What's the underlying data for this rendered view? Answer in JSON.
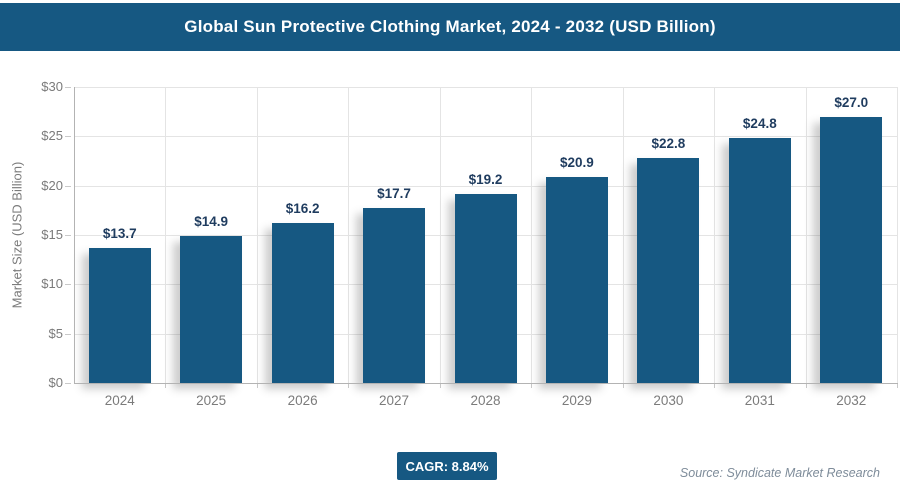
{
  "header": {
    "title": "Global Sun Protective Clothing Market, 2024 - 2032 (USD Billion)"
  },
  "chart_data": {
    "type": "bar",
    "title": "Global Sun Protective Clothing Market, 2024 - 2032 (USD Billion)",
    "categories": [
      "2024",
      "2025",
      "2026",
      "2027",
      "2028",
      "2029",
      "2030",
      "2031",
      "2032"
    ],
    "values": [
      13.7,
      14.9,
      16.2,
      17.7,
      19.2,
      20.9,
      22.8,
      24.8,
      27.0
    ],
    "value_labels": [
      "$13.7",
      "$14.9",
      "$16.2",
      "$17.7",
      "$19.2",
      "$20.9",
      "$22.8",
      "$24.8",
      "$27.0"
    ],
    "xlabel": "",
    "ylabel": "Market Size (USD Billion)",
    "ylim": [
      0,
      30
    ],
    "ytick_step": 5,
    "ytick_labels": [
      "$0",
      "$5",
      "$10",
      "$15",
      "$20",
      "$25",
      "$30"
    ],
    "grid": true,
    "legend": "none"
  },
  "footer": {
    "cagr_label": "CAGR: 8.84%",
    "source": "Source: Syndicate Market Research"
  },
  "colors": {
    "header_bg": "#165882",
    "bar": "#165882",
    "badge_bg": "#165882",
    "value_label": "#1F3C5F",
    "axis_text": "#7B7B7B",
    "gridline": "#E4E4E4",
    "source_text": "#7E8C9A"
  }
}
